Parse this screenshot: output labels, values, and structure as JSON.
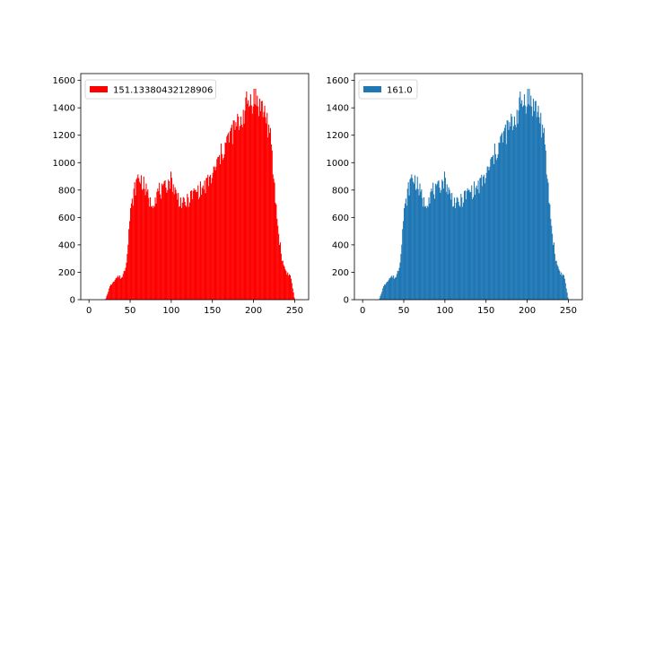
{
  "figure": {
    "background": "#ffffff"
  },
  "chart_data": [
    {
      "type": "bar",
      "title": "",
      "xlabel": "",
      "ylabel": "",
      "xlim": [
        -10,
        267
      ],
      "ylim": [
        0,
        1650
      ],
      "xticks": [
        0,
        50,
        100,
        150,
        200,
        250
      ],
      "yticks": [
        0,
        200,
        400,
        600,
        800,
        1000,
        1200,
        1400,
        1600
      ],
      "xtick_labels": [
        "0",
        "50",
        "100",
        "150",
        "200",
        "250"
      ],
      "ytick_labels": [
        "0",
        "200",
        "400",
        "600",
        "800",
        "1000",
        "1200",
        "1400",
        "1600"
      ],
      "grid": false,
      "legend_position": "upper-left",
      "series": [
        {
          "name": "151.13380432128906",
          "color": "#ff0000",
          "bin_width": 1,
          "x": [
            20,
            25,
            30,
            35,
            40,
            45,
            50,
            55,
            60,
            65,
            70,
            75,
            80,
            85,
            90,
            95,
            100,
            105,
            110,
            115,
            120,
            125,
            130,
            135,
            140,
            145,
            150,
            155,
            160,
            165,
            170,
            175,
            180,
            185,
            190,
            195,
            200,
            205,
            210,
            215,
            220,
            225,
            230,
            235,
            240,
            245,
            250
          ],
          "values": [
            0,
            90,
            140,
            170,
            160,
            250,
            620,
            790,
            900,
            860,
            780,
            700,
            740,
            800,
            780,
            850,
            880,
            780,
            730,
            690,
            720,
            760,
            790,
            800,
            820,
            860,
            900,
            980,
            1050,
            1120,
            1180,
            1230,
            1270,
            1320,
            1400,
            1450,
            1480,
            1440,
            1400,
            1350,
            1200,
            850,
            500,
            280,
            200,
            170,
            0
          ]
        }
      ]
    },
    {
      "type": "bar",
      "title": "",
      "xlabel": "",
      "ylabel": "",
      "xlim": [
        -10,
        267
      ],
      "ylim": [
        0,
        1650
      ],
      "xticks": [
        0,
        50,
        100,
        150,
        200,
        250
      ],
      "yticks": [
        0,
        200,
        400,
        600,
        800,
        1000,
        1200,
        1400,
        1600
      ],
      "xtick_labels": [
        "0",
        "50",
        "100",
        "150",
        "200",
        "250"
      ],
      "ytick_labels": [
        "0",
        "200",
        "400",
        "600",
        "800",
        "1000",
        "1200",
        "1400",
        "1600"
      ],
      "grid": false,
      "legend_position": "upper-left",
      "series": [
        {
          "name": "161.0",
          "color": "#1f77b4",
          "bin_width": 1,
          "x": [
            20,
            25,
            30,
            35,
            40,
            45,
            50,
            55,
            60,
            65,
            70,
            75,
            80,
            85,
            90,
            95,
            100,
            105,
            110,
            115,
            120,
            125,
            130,
            135,
            140,
            145,
            150,
            155,
            160,
            165,
            170,
            175,
            180,
            185,
            190,
            195,
            200,
            205,
            210,
            215,
            220,
            225,
            230,
            235,
            240,
            245,
            250
          ],
          "values": [
            0,
            90,
            140,
            170,
            160,
            250,
            620,
            790,
            900,
            860,
            780,
            700,
            740,
            800,
            780,
            850,
            880,
            780,
            730,
            690,
            720,
            760,
            790,
            800,
            820,
            860,
            900,
            980,
            1050,
            1120,
            1180,
            1230,
            1270,
            1320,
            1400,
            1450,
            1480,
            1440,
            1400,
            1350,
            1200,
            850,
            500,
            280,
            200,
            170,
            0
          ]
        }
      ]
    }
  ]
}
